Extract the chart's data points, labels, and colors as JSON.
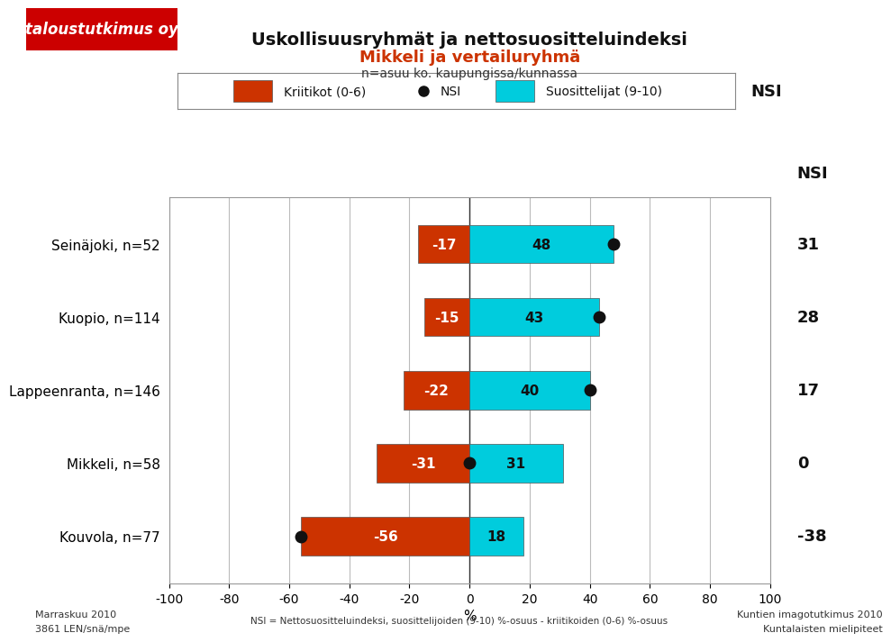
{
  "title_line1": "Uskollisuusryhmät ja nettosuositteluindeksi",
  "title_line2": "Mikkeli ja vertailuryhmä",
  "title_line3": "n=asuu ko. kaupungissa/kunnassa",
  "categories": [
    "Seinäjoki, n=52",
    "Kuopio, n=114",
    "Lappeenranta, n=146",
    "Mikkeli, n=58",
    "Kouvola, n=77"
  ],
  "critics": [
    -17,
    -15,
    -22,
    -31,
    -56
  ],
  "promoters": [
    48,
    43,
    40,
    31,
    18
  ],
  "nsi": [
    31,
    28,
    17,
    0,
    -38
  ],
  "dot_x": [
    48,
    43,
    40,
    0,
    -56
  ],
  "color_critics": "#cc3300",
  "color_promoters": "#00ccdd",
  "color_dot": "#111111",
  "bar_height": 0.52,
  "xlim": [
    -100,
    100
  ],
  "xlabel": "%",
  "xticks": [
    -100,
    -80,
    -60,
    -40,
    -20,
    0,
    20,
    40,
    60,
    80,
    100
  ],
  "legend_kriitikot": "Kriitikot (0-6)",
  "legend_nsi": "NSI",
  "legend_suosittelijat": "Suosittelijat (9-10)",
  "nsi_label": "NSI",
  "footer_left_line1": "Marraskuu 2010",
  "footer_left_line2": "3861 LEN/snä/mpe",
  "footer_center": "NSI = Nettosuositteluindeksi, suosittelijoiden (9-10) %-osuus - kriitikoiden (0-6) %-osuus",
  "footer_right_line1": "Kuntien imagotutkimus 2010",
  "footer_right_line2": "Kuntalaisten mielipiteet",
  "bg_color": "#ffffff",
  "plot_bg_color": "#ffffff",
  "logo_bg_color": "#cc0000",
  "logo_text": "taloustutkimus oy",
  "grid_color": "#bbbbbb",
  "title_color1": "#111111",
  "title_color2": "#cc3300",
  "bar_edge_color": "#555555",
  "bar_edge_width": 0.5
}
